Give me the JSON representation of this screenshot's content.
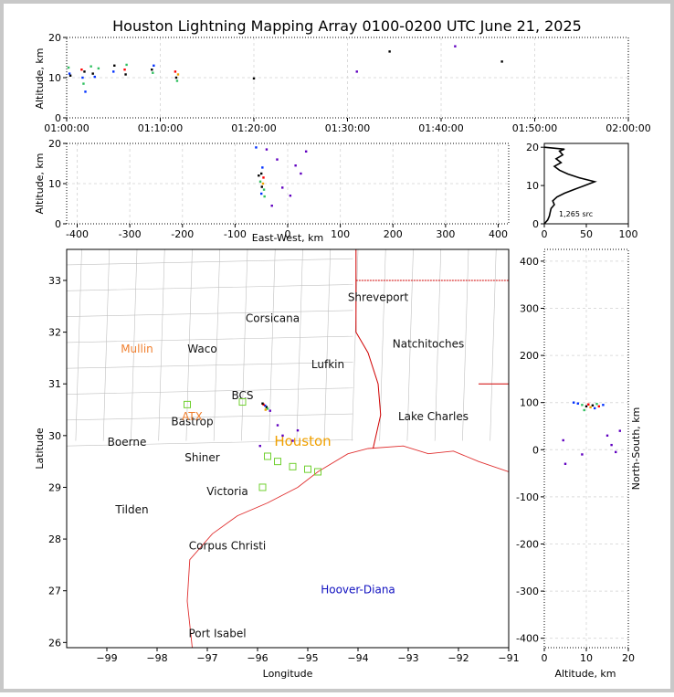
{
  "title": "Houston Lightning Mapping Array 0100-0200 UTC June 21, 2025",
  "colors": {
    "frame": "#c8c8c8",
    "coast": "#e03030",
    "county": "#c0c0c0",
    "state": "#d00000",
    "city": "#111111",
    "site_orange": "#f08030",
    "houston": "#f0a000",
    "blue_label": "#1010c0",
    "station": "#70d030"
  },
  "chart_data": [
    {
      "id": "time-altitude",
      "type": "scatter",
      "xlabel": "",
      "ylabel": "Altitude, km",
      "x_ticks": [
        "01:00:00",
        "01:10:00",
        "01:20:00",
        "01:30:00",
        "01:40:00",
        "01:50:00",
        "02:00:00"
      ],
      "xlim_minutes": [
        0,
        60
      ],
      "ylim": [
        0,
        20
      ],
      "y_ticks": [
        0,
        10,
        20
      ],
      "points": [
        {
          "t": 0.2,
          "z": 12.5,
          "c": "#30c060"
        },
        {
          "t": 0.3,
          "z": 11.0,
          "c": "#0030ff"
        },
        {
          "t": 0.4,
          "z": 10.5,
          "c": "#000000"
        },
        {
          "t": 1.6,
          "z": 12.0,
          "c": "#ff0000"
        },
        {
          "t": 1.7,
          "z": 10.0,
          "c": "#0030ff"
        },
        {
          "t": 1.8,
          "z": 8.5,
          "c": "#30c060"
        },
        {
          "t": 1.9,
          "z": 11.5,
          "c": "#000000"
        },
        {
          "t": 2.0,
          "z": 6.5,
          "c": "#0030ff"
        },
        {
          "t": 2.6,
          "z": 12.8,
          "c": "#30c060"
        },
        {
          "t": 2.8,
          "z": 11.0,
          "c": "#000000"
        },
        {
          "t": 3.0,
          "z": 10.2,
          "c": "#0030ff"
        },
        {
          "t": 3.4,
          "z": 12.3,
          "c": "#30c060"
        },
        {
          "t": 5.0,
          "z": 11.5,
          "c": "#0030ff"
        },
        {
          "t": 5.1,
          "z": 13.0,
          "c": "#000000"
        },
        {
          "t": 6.2,
          "z": 12.0,
          "c": "#ff0000"
        },
        {
          "t": 6.3,
          "z": 10.8,
          "c": "#000000"
        },
        {
          "t": 6.4,
          "z": 13.2,
          "c": "#30c060"
        },
        {
          "t": 9.1,
          "z": 12.0,
          "c": "#000000"
        },
        {
          "t": 9.2,
          "z": 11.2,
          "c": "#30c060"
        },
        {
          "t": 9.3,
          "z": 13.0,
          "c": "#0030ff"
        },
        {
          "t": 11.6,
          "z": 11.5,
          "c": "#ff0000"
        },
        {
          "t": 11.7,
          "z": 10.0,
          "c": "#000000"
        },
        {
          "t": 11.8,
          "z": 9.2,
          "c": "#30c060"
        },
        {
          "t": 11.9,
          "z": 10.8,
          "c": "#f0a000"
        },
        {
          "t": 20.0,
          "z": 9.8,
          "c": "#000000"
        },
        {
          "t": 31.0,
          "z": 11.5,
          "c": "#6000c0"
        },
        {
          "t": 34.5,
          "z": 16.5,
          "c": "#000000"
        },
        {
          "t": 41.5,
          "z": 17.8,
          "c": "#6000c0"
        },
        {
          "t": 46.5,
          "z": 14.0,
          "c": "#000000"
        }
      ]
    },
    {
      "id": "east-west-altitude",
      "type": "scatter",
      "xlabel": "East-West, km",
      "ylabel": "Altitude, km",
      "xlim": [
        -420,
        420
      ],
      "ylim": [
        0,
        20
      ],
      "x_ticks": [
        -400,
        -300,
        -200,
        -100,
        0,
        100,
        200,
        300,
        400
      ],
      "y_ticks": [
        0,
        10,
        20
      ],
      "points": [
        {
          "x": -48,
          "z": 14.0,
          "c": "#0030ff"
        },
        {
          "x": -50,
          "z": 12.5,
          "c": "#000000"
        },
        {
          "x": -46,
          "z": 11.5,
          "c": "#ff0000"
        },
        {
          "x": -52,
          "z": 10.5,
          "c": "#30c060"
        },
        {
          "x": -47,
          "z": 10.0,
          "c": "#f0a000"
        },
        {
          "x": -49,
          "z": 9.2,
          "c": "#000000"
        },
        {
          "x": -45,
          "z": 8.5,
          "c": "#30c060"
        },
        {
          "x": -50,
          "z": 7.5,
          "c": "#0030ff"
        },
        {
          "x": -44,
          "z": 6.8,
          "c": "#30c060"
        },
        {
          "x": -55,
          "z": 12.0,
          "c": "#000000"
        },
        {
          "x": -60,
          "z": 19.0,
          "c": "#0030ff"
        },
        {
          "x": -40,
          "z": 18.5,
          "c": "#6000c0"
        },
        {
          "x": -20,
          "z": 16.0,
          "c": "#6000c0"
        },
        {
          "x": 15,
          "z": 14.5,
          "c": "#6000c0"
        },
        {
          "x": 25,
          "z": 12.5,
          "c": "#6000c0"
        },
        {
          "x": -10,
          "z": 9.0,
          "c": "#6000c0"
        },
        {
          "x": 5,
          "z": 7.0,
          "c": "#6000c0"
        },
        {
          "x": -30,
          "z": 4.5,
          "c": "#6000c0"
        },
        {
          "x": 35,
          "z": 18.0,
          "c": "#6000c0"
        }
      ]
    },
    {
      "id": "altitude-histogram",
      "type": "line",
      "annotation": "1,265 src",
      "xlim": [
        0,
        100
      ],
      "ylim": [
        0,
        21
      ],
      "x_ticks": [
        0,
        50,
        100
      ],
      "y_ticks": [
        0,
        10,
        20
      ],
      "profile": [
        [
          0,
          0
        ],
        [
          4,
          1
        ],
        [
          6,
          2
        ],
        [
          7,
          3
        ],
        [
          8,
          4
        ],
        [
          12,
          5
        ],
        [
          10,
          6
        ],
        [
          15,
          7
        ],
        [
          24,
          8
        ],
        [
          36,
          9
        ],
        [
          48,
          10
        ],
        [
          60,
          11
        ],
        [
          42,
          12
        ],
        [
          28,
          13
        ],
        [
          18,
          14
        ],
        [
          12,
          15
        ],
        [
          20,
          16
        ],
        [
          14,
          17
        ],
        [
          22,
          18
        ],
        [
          18,
          19
        ],
        [
          24,
          19.5
        ],
        [
          0,
          20
        ]
      ]
    },
    {
      "id": "plan-view",
      "type": "map",
      "xlabel": "Longitude",
      "ylabel": "Latitude",
      "xlim": [
        -99.8,
        -91.0
      ],
      "ylim": [
        25.9,
        33.6
      ],
      "x_ticks": [
        -99,
        -98,
        -97,
        -96,
        -95,
        -94,
        -93,
        -92,
        -91
      ],
      "y_ticks": [
        26,
        27,
        28,
        29,
        30,
        31,
        32,
        33
      ],
      "cities": [
        {
          "name": "Shreveport",
          "lon": -93.6,
          "lat": 32.6
        },
        {
          "name": "Corsicana",
          "lon": -95.7,
          "lat": 32.2
        },
        {
          "name": "Natchitoches",
          "lon": -92.6,
          "lat": 31.7
        },
        {
          "name": "Waco",
          "lon": -97.1,
          "lat": 31.6
        },
        {
          "name": "Lufkin",
          "lon": -94.6,
          "lat": 31.3
        },
        {
          "name": "BCS",
          "lon": -96.3,
          "lat": 30.7
        },
        {
          "name": "Bastrop",
          "lon": -97.3,
          "lat": 30.2
        },
        {
          "name": "Lake Charles",
          "lon": -92.5,
          "lat": 30.3
        },
        {
          "name": "Boerne",
          "lon": -98.6,
          "lat": 29.8
        },
        {
          "name": "Shiner",
          "lon": -97.1,
          "lat": 29.5
        },
        {
          "name": "Victoria",
          "lon": -96.6,
          "lat": 28.85
        },
        {
          "name": "Tilden",
          "lon": -98.5,
          "lat": 28.5
        },
        {
          "name": "Corpus Christi",
          "lon": -96.6,
          "lat": 27.8
        },
        {
          "name": "Port Isabel",
          "lon": -96.8,
          "lat": 26.1
        }
      ],
      "orange_sites": [
        {
          "name": "Mullin",
          "lon": -98.4,
          "lat": 31.6
        },
        {
          "name": "ATX",
          "lon": -97.3,
          "lat": 30.3
        }
      ],
      "houston_label": "Houston",
      "blue_label": "Hoover-Diana",
      "stations": [
        [
          -97.4,
          30.6
        ],
        [
          -96.3,
          30.65
        ],
        [
          -95.8,
          29.6
        ],
        [
          -95.6,
          29.5
        ],
        [
          -95.3,
          29.4
        ],
        [
          -95.0,
          29.35
        ],
        [
          -94.8,
          29.3
        ],
        [
          -95.9,
          29.0
        ]
      ],
      "sources": [
        {
          "lon": -95.85,
          "lat": 30.58,
          "c": "#0030ff"
        },
        {
          "lon": -95.82,
          "lat": 30.55,
          "c": "#000000"
        },
        {
          "lon": -95.88,
          "lat": 30.6,
          "c": "#ff0000"
        },
        {
          "lon": -95.8,
          "lat": 30.52,
          "c": "#30c060"
        },
        {
          "lon": -95.84,
          "lat": 30.5,
          "c": "#f0a000"
        },
        {
          "lon": -95.9,
          "lat": 30.62,
          "c": "#000000"
        },
        {
          "lon": -95.75,
          "lat": 30.48,
          "c": "#6000c0"
        },
        {
          "lon": -95.6,
          "lat": 30.2,
          "c": "#6000c0"
        },
        {
          "lon": -95.5,
          "lat": 30.0,
          "c": "#6000c0"
        },
        {
          "lon": -95.95,
          "lat": 29.8,
          "c": "#6000c0"
        },
        {
          "lon": -95.3,
          "lat": 29.9,
          "c": "#6000c0"
        },
        {
          "lon": -95.2,
          "lat": 30.1,
          "c": "#6000c0"
        }
      ]
    },
    {
      "id": "altitude-north-south",
      "type": "scatter",
      "xlabel": "Altitude, km",
      "ylabel": "North-South, km",
      "xlim": [
        0,
        20
      ],
      "ylim": [
        -420,
        425
      ],
      "x_ticks": [
        0,
        10,
        20
      ],
      "y_ticks": [
        -400,
        -300,
        -200,
        -100,
        0,
        100,
        200,
        300,
        400
      ],
      "points": [
        {
          "z": 8.0,
          "y": 98,
          "c": "#0030ff"
        },
        {
          "z": 9.0,
          "y": 95,
          "c": "#30c060"
        },
        {
          "z": 10.0,
          "y": 92,
          "c": "#000000"
        },
        {
          "z": 10.5,
          "y": 96,
          "c": "#ff0000"
        },
        {
          "z": 11.0,
          "y": 90,
          "c": "#f0a000"
        },
        {
          "z": 11.5,
          "y": 94,
          "c": "#000000"
        },
        {
          "z": 12.0,
          "y": 88,
          "c": "#0030ff"
        },
        {
          "z": 12.5,
          "y": 97,
          "c": "#30c060"
        },
        {
          "z": 13.0,
          "y": 92,
          "c": "#ff0000"
        },
        {
          "z": 14.0,
          "y": 95,
          "c": "#0030ff"
        },
        {
          "z": 9.5,
          "y": 84,
          "c": "#30c060"
        },
        {
          "z": 7.0,
          "y": 100,
          "c": "#0030ff"
        },
        {
          "z": 15.0,
          "y": 30,
          "c": "#6000c0"
        },
        {
          "z": 16.0,
          "y": 10,
          "c": "#6000c0"
        },
        {
          "z": 17.0,
          "y": -5,
          "c": "#6000c0"
        },
        {
          "z": 5.0,
          "y": -30,
          "c": "#6000c0"
        },
        {
          "z": 9.0,
          "y": -10,
          "c": "#6000c0"
        },
        {
          "z": 18.0,
          "y": 40,
          "c": "#6000c0"
        },
        {
          "z": 4.5,
          "y": 20,
          "c": "#6000c0"
        }
      ]
    }
  ]
}
